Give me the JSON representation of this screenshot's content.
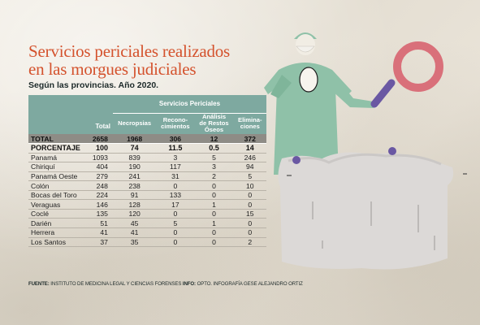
{
  "title_line1": "Servicios periciales realizados",
  "title_line2": "en las morgues judiciales",
  "subtitle": "Según las provincias. Año 2020.",
  "table": {
    "group_header": "Servicios Periciales",
    "columns": [
      "Total",
      "Necropsias",
      "Reconocimientos",
      "Análisis de Restos Óseos",
      "Eliminaciones"
    ],
    "column_labels": {
      "total": "Total",
      "necropsias": "Necropsias",
      "reconocimientos_1": "Recono-",
      "reconocimientos_2": "cimientos",
      "analisis_1": "Análisis",
      "analisis_2": "de Restos",
      "analisis_3": "Óseos",
      "eliminaciones_1": "Elimina-",
      "eliminaciones_2": "ciones"
    },
    "summary_total": {
      "label": "TOTAL",
      "total": "2658",
      "necropsias": "1968",
      "reconocimientos": "306",
      "analisis": "12",
      "eliminaciones": "372"
    },
    "summary_pct": {
      "label": "PORCENTAJE",
      "total": "100",
      "necropsias": "74",
      "reconocimientos": "11.5",
      "analisis": "0.5",
      "eliminaciones": "14"
    },
    "rows": [
      {
        "label": "Panamá",
        "total": "1093",
        "necropsias": "839",
        "reconocimientos": "3",
        "analisis": "5",
        "eliminaciones": "246"
      },
      {
        "label": "Chiriquí",
        "total": "404",
        "necropsias": "190",
        "reconocimientos": "117",
        "analisis": "3",
        "eliminaciones": "94"
      },
      {
        "label": "Panamá Oeste",
        "total": "279",
        "necropsias": "241",
        "reconocimientos": "31",
        "analisis": "2",
        "eliminaciones": "5"
      },
      {
        "label": "Colón",
        "total": "248",
        "necropsias": "238",
        "reconocimientos": "0",
        "analisis": "0",
        "eliminaciones": "10"
      },
      {
        "label": "Bocas del Toro",
        "total": "224",
        "necropsias": "91",
        "reconocimientos": "133",
        "analisis": "0",
        "eliminaciones": "0"
      },
      {
        "label": "Veraguas",
        "total": "146",
        "necropsias": "128",
        "reconocimientos": "17",
        "analisis": "1",
        "eliminaciones": "0"
      },
      {
        "label": "Coclé",
        "total": "135",
        "necropsias": "120",
        "reconocimientos": "0",
        "analisis": "0",
        "eliminaciones": "15"
      },
      {
        "label": "Darién",
        "total": "51",
        "necropsias": "45",
        "reconocimientos": "5",
        "analisis": "1",
        "eliminaciones": "0"
      },
      {
        "label": "Herrera",
        "total": "41",
        "necropsias": "41",
        "reconocimientos": "0",
        "analisis": "0",
        "eliminaciones": "0"
      },
      {
        "label": "Los Santos",
        "total": "37",
        "necropsias": "35",
        "reconocimientos": "0",
        "analisis": "0",
        "eliminaciones": "2"
      }
    ]
  },
  "source": {
    "fuente_label": "FUENTE:",
    "fuente_text": " INSTITUTO DE MEDICINA LEGAL Y CIENCIAS FORENSES ",
    "info_label": "INFO:",
    "info_text": " OPTO. INFOGRAFÍA GESE ALEJANDRO ORTIZ"
  },
  "colors": {
    "title": "#d4522d",
    "table_header": "#7ea9a0",
    "total_row": "#8e8c86",
    "scrubs": "#8fc1a8",
    "magnifier": "#d9707a",
    "magnifier_handle": "#6a58a3",
    "sheet": "#dcd9d7"
  },
  "illustration": {
    "subject": "forensic-doctor-with-magnifying-glass-and-covered-body",
    "icons": [
      "doctor-figure",
      "magnifying-glass-icon",
      "covered-body-sheet"
    ]
  }
}
